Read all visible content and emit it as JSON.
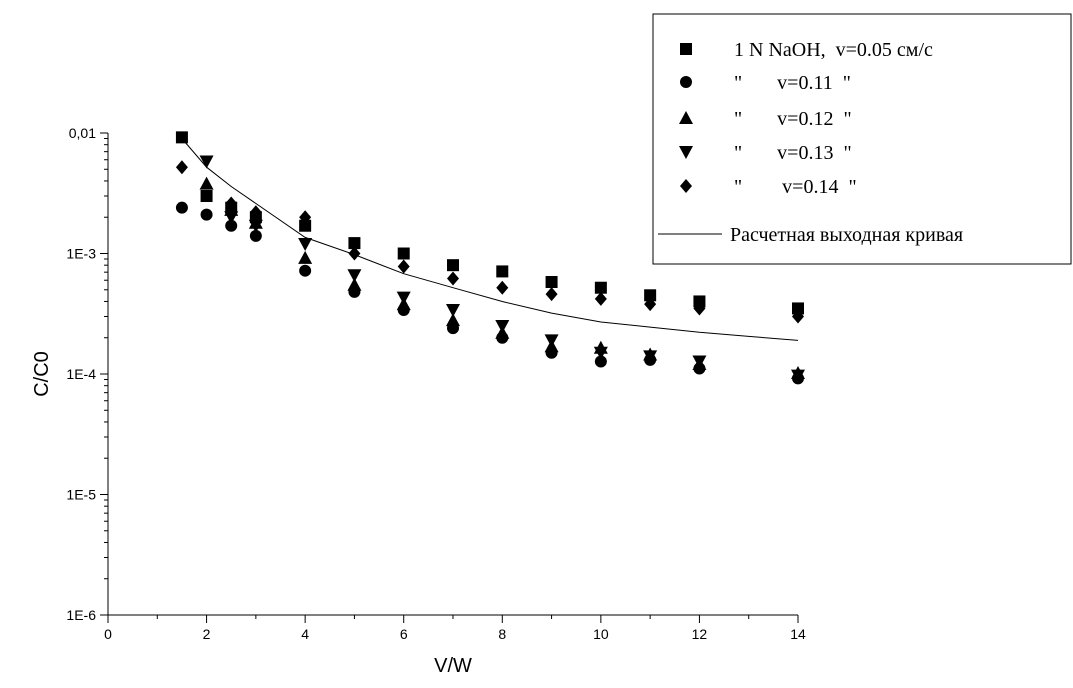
{
  "chart_data": {
    "type": "scatter",
    "title": "",
    "xlabel": "V/W",
    "ylabel": "C/C0",
    "xlim": [
      0,
      14
    ],
    "ylim": [
      1e-06,
      0.01
    ],
    "yscale": "log",
    "x_ticks": [
      0,
      2,
      4,
      6,
      8,
      10,
      12,
      14
    ],
    "x_tick_labels": [
      "0",
      "2",
      "4",
      "6",
      "8",
      "10",
      "12",
      "14"
    ],
    "y_ticks": [
      1e-06,
      1e-05,
      0.0001,
      0.001,
      0.01
    ],
    "y_tick_labels": [
      "1E-6",
      "1E-5",
      "1E-4",
      "1E-3",
      "0,01"
    ],
    "grid": false,
    "legend_position": "top-right",
    "series": [
      {
        "name": "1 N NaOH,  v=0.05 см/с",
        "marker": "square",
        "x": [
          1.5,
          2,
          2.5,
          3,
          4,
          5,
          6,
          7,
          8,
          9,
          10,
          11,
          12,
          14
        ],
        "y": [
          0.0092,
          0.003,
          0.0024,
          0.002,
          0.0017,
          0.00122,
          0.001,
          0.0008,
          0.00071,
          0.00058,
          0.00052,
          0.00045,
          0.0004,
          0.00035
        ]
      },
      {
        "name": "\"       v=0.11  \"",
        "marker": "circle",
        "x": [
          1.5,
          2,
          2.5,
          3,
          4,
          5,
          6,
          7,
          8,
          9,
          10,
          11,
          12,
          14
        ],
        "y": [
          0.0024,
          0.0021,
          0.0017,
          0.0014,
          0.00072,
          0.00048,
          0.00034,
          0.00024,
          0.0002,
          0.00015,
          0.000127,
          0.000131,
          0.000111,
          9.2e-05
        ]
      },
      {
        "name": "\"       v=0.12  \"",
        "marker": "triangle-up",
        "x": [
          2,
          2.5,
          3,
          4,
          5,
          6,
          7,
          8,
          9,
          10,
          11,
          12,
          14
        ],
        "y": [
          0.0038,
          0.0023,
          0.0018,
          0.00092,
          0.00055,
          0.00038,
          0.00028,
          0.00022,
          0.00017,
          0.000165,
          0.000145,
          0.000121,
          0.000102
        ]
      },
      {
        "name": "\"       v=0.13  \"",
        "marker": "triangle-down",
        "x": [
          2,
          2.5,
          3,
          4,
          5,
          6,
          7,
          8,
          9,
          10,
          11,
          12,
          14
        ],
        "y": [
          0.0058,
          0.002,
          0.0017,
          0.0012,
          0.00066,
          0.00043,
          0.00034,
          0.00025,
          0.00019,
          0.00015,
          0.00014,
          0.000127,
          9.7e-05
        ]
      },
      {
        "name": "\"        v=0.14  \"",
        "marker": "diamond",
        "x": [
          1.5,
          2.5,
          3,
          4,
          5,
          6,
          7,
          8,
          9,
          10,
          11,
          12,
          14
        ],
        "y": [
          0.0052,
          0.0026,
          0.0022,
          0.002,
          0.001,
          0.00078,
          0.00062,
          0.00052,
          0.00046,
          0.00042,
          0.00038,
          0.00035,
          0.0003
        ]
      }
    ],
    "curve": {
      "name": "Расчетная выходная кривая",
      "x": [
        1.5,
        2,
        2.5,
        3,
        4,
        5,
        6,
        7,
        8,
        9,
        10,
        11,
        12,
        13,
        14
      ],
      "y": [
        0.009,
        0.0052,
        0.0036,
        0.0026,
        0.00136,
        0.00098,
        0.00068,
        0.00052,
        0.0004,
        0.00032,
        0.00027,
        0.000245,
        0.000222,
        0.000205,
        0.00019
      ]
    },
    "colors": {
      "marks": "#000000",
      "background": "#ffffff"
    }
  }
}
